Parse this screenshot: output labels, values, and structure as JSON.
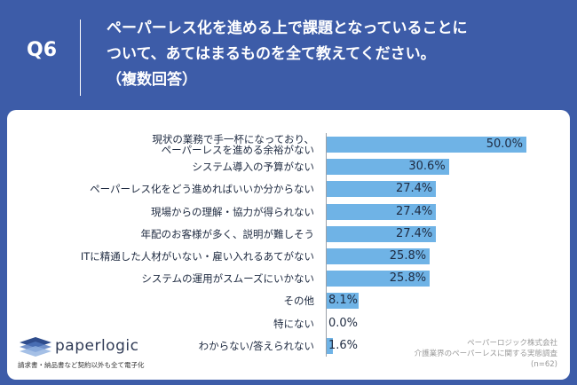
{
  "chart_data": {
    "type": "bar",
    "orientation": "horizontal",
    "question": "Q6",
    "title": "ペーパーレス化を進める上で課題となっていることに\nついて、あてはまるものを全て教えてください。\n（複数回答）",
    "categories": [
      "現状の業務で手一杯になっており、\nペーパーレスを進める余裕がない",
      "システム導入の予算がない",
      "ペーパーレス化をどう進めればいいか分からない",
      "現場からの理解・協力が得られない",
      "年配のお客様が多く、説明が難しそう",
      "ITに精通した人材がいない・雇い入れるあてがない",
      "システムの運用がスムーズにいかない",
      "その他",
      "特にない",
      "わからない/答えられない"
    ],
    "values": [
      50.0,
      30.6,
      27.4,
      27.4,
      27.4,
      25.8,
      25.8,
      8.1,
      0.0,
      1.6
    ],
    "value_labels": [
      "50.0%",
      "30.6%",
      "27.4%",
      "27.4%",
      "27.4%",
      "25.8%",
      "25.8%",
      "8.1%",
      "0.0%",
      "1.6%"
    ],
    "color": "#6fb3e6"
  },
  "brand": {
    "name": "paperlogic",
    "tagline": "請求書・納品書など契約以外も全て電子化"
  },
  "source": [
    "ペーパーロジック株式会社",
    "介護業界のペーパーレスに関する実態調査",
    "(n=62)"
  ]
}
